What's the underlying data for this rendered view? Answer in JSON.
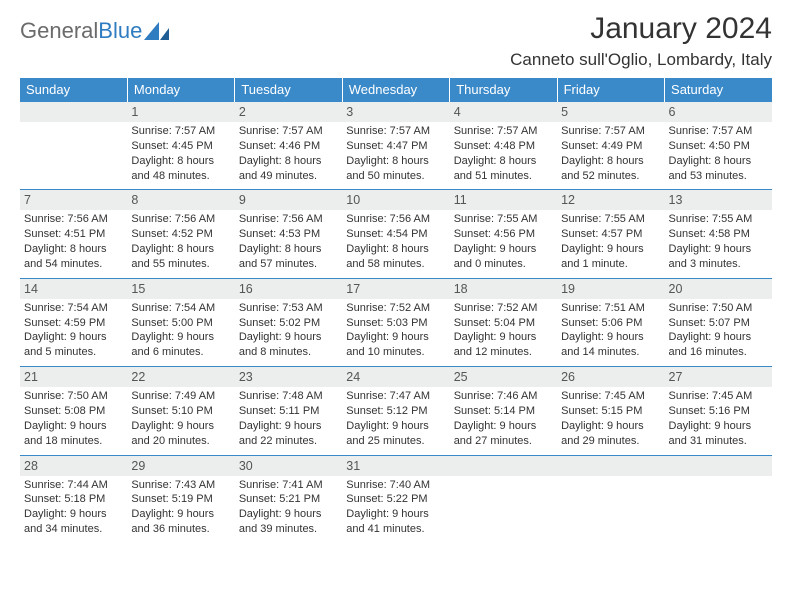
{
  "brand": {
    "name_gray": "General",
    "name_blue": "Blue"
  },
  "title": "January 2024",
  "location": "Canneto sull'Oglio, Lombardy, Italy",
  "colors": {
    "header_bg": "#3a89c9",
    "header_text": "#ffffff",
    "daynum_bg": "#eceded",
    "rule": "#3a89c9",
    "body_text": "#333333",
    "logo_gray": "#6b6b6b",
    "logo_blue": "#2f7cc0",
    "page_bg": "#ffffff"
  },
  "day_labels": [
    "Sunday",
    "Monday",
    "Tuesday",
    "Wednesday",
    "Thursday",
    "Friday",
    "Saturday"
  ],
  "weeks": [
    [
      {
        "n": "",
        "sr": "",
        "ss": "",
        "dl": ""
      },
      {
        "n": "1",
        "sr": "7:57 AM",
        "ss": "4:45 PM",
        "dl": "8 hours and 48 minutes."
      },
      {
        "n": "2",
        "sr": "7:57 AM",
        "ss": "4:46 PM",
        "dl": "8 hours and 49 minutes."
      },
      {
        "n": "3",
        "sr": "7:57 AM",
        "ss": "4:47 PM",
        "dl": "8 hours and 50 minutes."
      },
      {
        "n": "4",
        "sr": "7:57 AM",
        "ss": "4:48 PM",
        "dl": "8 hours and 51 minutes."
      },
      {
        "n": "5",
        "sr": "7:57 AM",
        "ss": "4:49 PM",
        "dl": "8 hours and 52 minutes."
      },
      {
        "n": "6",
        "sr": "7:57 AM",
        "ss": "4:50 PM",
        "dl": "8 hours and 53 minutes."
      }
    ],
    [
      {
        "n": "7",
        "sr": "7:56 AM",
        "ss": "4:51 PM",
        "dl": "8 hours and 54 minutes."
      },
      {
        "n": "8",
        "sr": "7:56 AM",
        "ss": "4:52 PM",
        "dl": "8 hours and 55 minutes."
      },
      {
        "n": "9",
        "sr": "7:56 AM",
        "ss": "4:53 PM",
        "dl": "8 hours and 57 minutes."
      },
      {
        "n": "10",
        "sr": "7:56 AM",
        "ss": "4:54 PM",
        "dl": "8 hours and 58 minutes."
      },
      {
        "n": "11",
        "sr": "7:55 AM",
        "ss": "4:56 PM",
        "dl": "9 hours and 0 minutes."
      },
      {
        "n": "12",
        "sr": "7:55 AM",
        "ss": "4:57 PM",
        "dl": "9 hours and 1 minute."
      },
      {
        "n": "13",
        "sr": "7:55 AM",
        "ss": "4:58 PM",
        "dl": "9 hours and 3 minutes."
      }
    ],
    [
      {
        "n": "14",
        "sr": "7:54 AM",
        "ss": "4:59 PM",
        "dl": "9 hours and 5 minutes."
      },
      {
        "n": "15",
        "sr": "7:54 AM",
        "ss": "5:00 PM",
        "dl": "9 hours and 6 minutes."
      },
      {
        "n": "16",
        "sr": "7:53 AM",
        "ss": "5:02 PM",
        "dl": "9 hours and 8 minutes."
      },
      {
        "n": "17",
        "sr": "7:52 AM",
        "ss": "5:03 PM",
        "dl": "9 hours and 10 minutes."
      },
      {
        "n": "18",
        "sr": "7:52 AM",
        "ss": "5:04 PM",
        "dl": "9 hours and 12 minutes."
      },
      {
        "n": "19",
        "sr": "7:51 AM",
        "ss": "5:06 PM",
        "dl": "9 hours and 14 minutes."
      },
      {
        "n": "20",
        "sr": "7:50 AM",
        "ss": "5:07 PM",
        "dl": "9 hours and 16 minutes."
      }
    ],
    [
      {
        "n": "21",
        "sr": "7:50 AM",
        "ss": "5:08 PM",
        "dl": "9 hours and 18 minutes."
      },
      {
        "n": "22",
        "sr": "7:49 AM",
        "ss": "5:10 PM",
        "dl": "9 hours and 20 minutes."
      },
      {
        "n": "23",
        "sr": "7:48 AM",
        "ss": "5:11 PM",
        "dl": "9 hours and 22 minutes."
      },
      {
        "n": "24",
        "sr": "7:47 AM",
        "ss": "5:12 PM",
        "dl": "9 hours and 25 minutes."
      },
      {
        "n": "25",
        "sr": "7:46 AM",
        "ss": "5:14 PM",
        "dl": "9 hours and 27 minutes."
      },
      {
        "n": "26",
        "sr": "7:45 AM",
        "ss": "5:15 PM",
        "dl": "9 hours and 29 minutes."
      },
      {
        "n": "27",
        "sr": "7:45 AM",
        "ss": "5:16 PM",
        "dl": "9 hours and 31 minutes."
      }
    ],
    [
      {
        "n": "28",
        "sr": "7:44 AM",
        "ss": "5:18 PM",
        "dl": "9 hours and 34 minutes."
      },
      {
        "n": "29",
        "sr": "7:43 AM",
        "ss": "5:19 PM",
        "dl": "9 hours and 36 minutes."
      },
      {
        "n": "30",
        "sr": "7:41 AM",
        "ss": "5:21 PM",
        "dl": "9 hours and 39 minutes."
      },
      {
        "n": "31",
        "sr": "7:40 AM",
        "ss": "5:22 PM",
        "dl": "9 hours and 41 minutes."
      },
      {
        "n": "",
        "sr": "",
        "ss": "",
        "dl": ""
      },
      {
        "n": "",
        "sr": "",
        "ss": "",
        "dl": ""
      },
      {
        "n": "",
        "sr": "",
        "ss": "",
        "dl": ""
      }
    ]
  ],
  "labels": {
    "sunrise": "Sunrise:",
    "sunset": "Sunset:",
    "daylight": "Daylight:"
  }
}
